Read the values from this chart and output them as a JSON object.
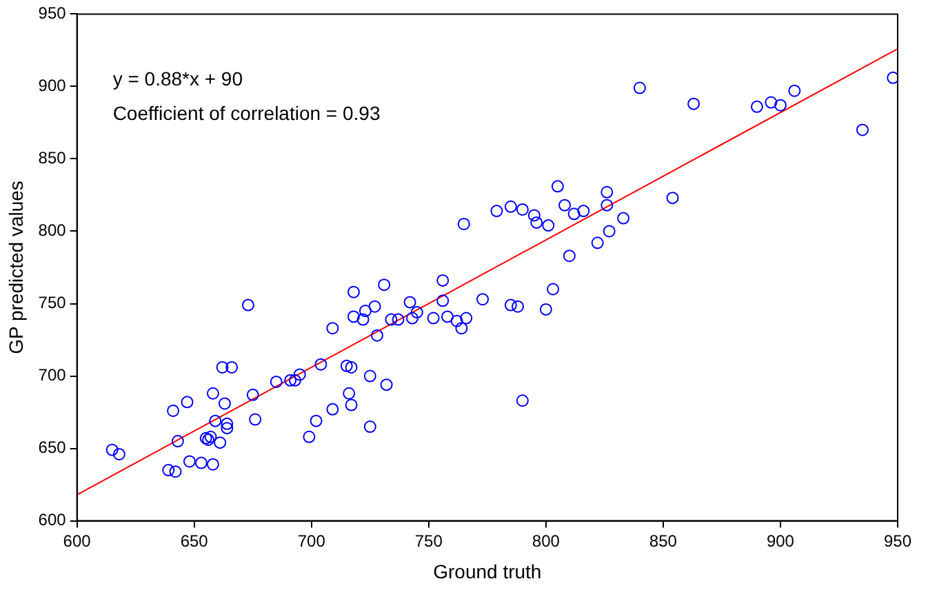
{
  "chart_data": {
    "type": "scatter",
    "xlabel": "Ground truth",
    "ylabel": "GP predicted values",
    "annotations": [
      "y = 0.88*x + 90",
      "Coefficient of correlation = 0.93"
    ],
    "xlim": [
      600,
      950
    ],
    "xticks": [
      600,
      650,
      700,
      750,
      800,
      850,
      900,
      950
    ],
    "ylim": [
      600,
      950
    ],
    "yticks": [
      600,
      650,
      700,
      750,
      800,
      850,
      900,
      950
    ],
    "legend": false,
    "marker": "circle",
    "series": [
      {
        "color": "#0000ff",
        "x": [
          615,
          618,
          639,
          642,
          641,
          643,
          647,
          648,
          653,
          655,
          656,
          657,
          658,
          658,
          659,
          661,
          662,
          663,
          664,
          664,
          666,
          675,
          676,
          673,
          685,
          691,
          693,
          695,
          699,
          702,
          704,
          709,
          709,
          715,
          716,
          717,
          717,
          718,
          718,
          722,
          723,
          725,
          725,
          727,
          728,
          731,
          732,
          734,
          737,
          742,
          743,
          745,
          752,
          756,
          756,
          758,
          762,
          764,
          766,
          765,
          773,
          779,
          785,
          785,
          788,
          790,
          790,
          795,
          796,
          800,
          801,
          803,
          805,
          808,
          810,
          812,
          816,
          822,
          826,
          826,
          827,
          833,
          840,
          854,
          863,
          890,
          896,
          900,
          906,
          935,
          948
        ],
        "values": [
          649,
          646,
          635,
          634,
          676,
          655,
          682,
          641,
          640,
          657,
          656,
          658,
          688,
          639,
          669,
          654,
          706,
          681,
          664,
          667,
          706,
          687,
          670,
          749,
          696,
          697,
          697,
          701,
          658,
          669,
          708,
          677,
          733,
          707,
          688,
          706,
          680,
          758,
          741,
          739,
          745,
          700,
          665,
          748,
          728,
          763,
          694,
          739,
          739,
          751,
          740,
          744,
          740,
          752,
          766,
          741,
          738,
          733,
          740,
          805,
          753,
          814,
          817,
          749,
          748,
          683,
          815,
          811,
          806,
          746,
          804,
          760,
          831,
          818,
          783,
          812,
          814,
          792,
          827,
          818,
          800,
          809,
          899,
          823,
          888,
          886,
          889,
          887,
          897,
          870,
          906
        ]
      },
      {
        "type": "line",
        "color": "#ff0000",
        "marker": "none",
        "line_style": "solid",
        "x": [
          600,
          950
        ],
        "values": [
          618,
          926
        ]
      }
    ]
  }
}
